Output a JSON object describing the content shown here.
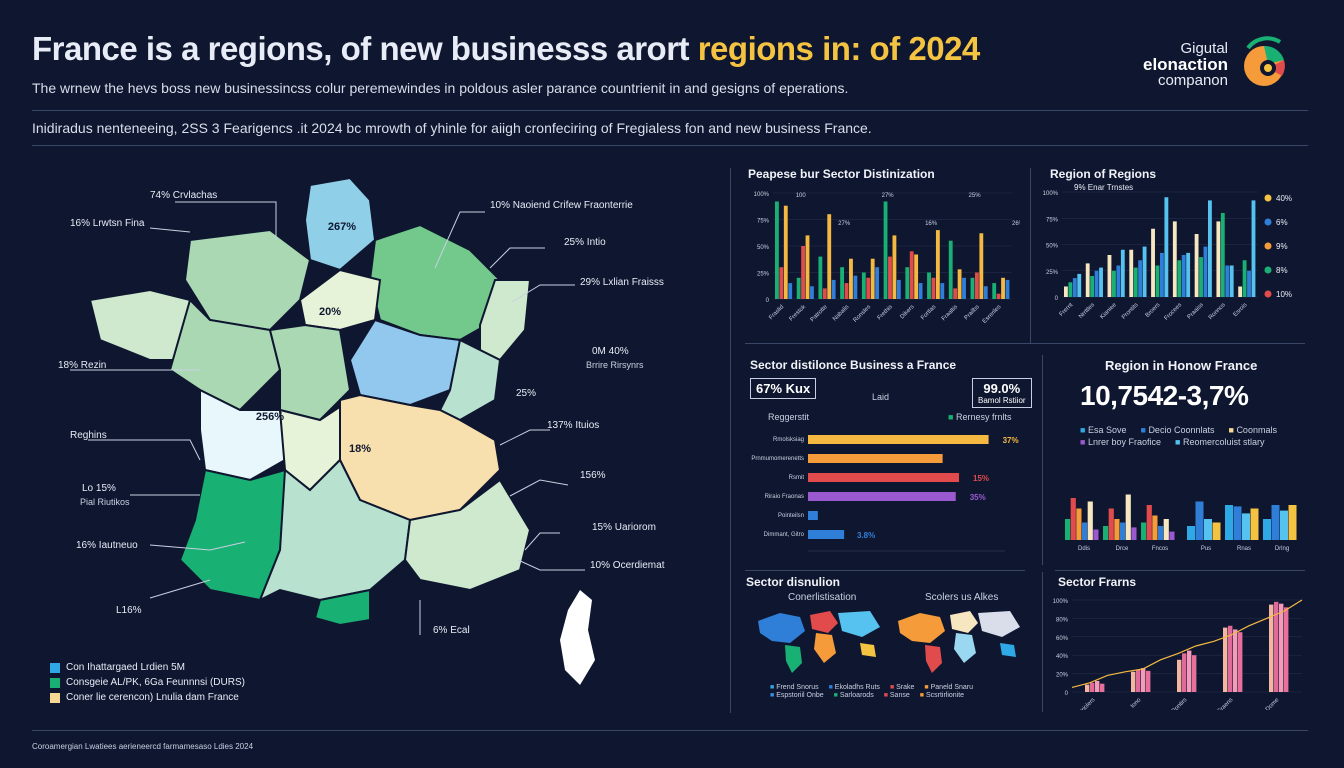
{
  "header": {
    "title_main": "France is a regions, of new businesss arort",
    "title_highlight": "regions in: of 2024",
    "subtitle": "The wrnew the hevs boss new businessincss colur peremewindes in poldous asler parance countrienit in and gesigns of eperations.",
    "description": "Inidiradus nenteneeing, 2SS 3 Fearigencs .it 2024 bc mrowth of yhinle for aiigh cronfeciring of Fregialess fon and new business France."
  },
  "logo": {
    "line1": "Gigutal",
    "line2": "elonaction",
    "line3": "companon"
  },
  "map": {
    "labels": [
      {
        "id": "l1",
        "text": "74% Crvlachas"
      },
      {
        "id": "l2",
        "text": "16% Lrwtsn Fina"
      },
      {
        "id": "l3",
        "text": "10% Naoiend Crifew Fraonterrie"
      },
      {
        "id": "l4",
        "text": "25% Intio"
      },
      {
        "id": "l5",
        "text": "29% Lxlian Fraisss"
      },
      {
        "id": "l6",
        "text": "0M 40%"
      },
      {
        "id": "l6b",
        "text": "Brrire Rirsynrs"
      },
      {
        "id": "l7",
        "text": "18% Rezin"
      },
      {
        "id": "l8",
        "text": "25%"
      },
      {
        "id": "l9",
        "text": "Reghins"
      },
      {
        "id": "l10",
        "text": "137% Ituios"
      },
      {
        "id": "l11",
        "text": "Lo 15%"
      },
      {
        "id": "l11b",
        "text": "Pial Riutikos"
      },
      {
        "id": "l12",
        "text": "156%"
      },
      {
        "id": "l13",
        "text": "15% Uariorom"
      },
      {
        "id": "l14",
        "text": "16% Iautneuo"
      },
      {
        "id": "l15",
        "text": "10% Ocerdiemat"
      },
      {
        "id": "l16",
        "text": "L16%"
      },
      {
        "id": "l17",
        "text": "6% Ecal"
      }
    ],
    "region_values": {
      "r1": "267%",
      "r2": "20%",
      "r3": "256%",
      "r4": "18%"
    },
    "legend": [
      {
        "color": "#2fa8e6",
        "label": "Con Ihattargaed Lrdien 5M"
      },
      {
        "color": "#19b074",
        "label": "Consgeie AL/PK, 6Ga Feunnnsi (DURS)"
      },
      {
        "color": "#f6d794",
        "label": "Coner lie cerencon) Lnulia dam France"
      }
    ]
  },
  "panels": {
    "p1_title": "Peapese bur Sector Distinization",
    "p2_title": "Region of Regions",
    "p3_title": "Sector distilonce Business a France",
    "p4_title": "Region in Honow France",
    "p5_title": "Sector disnulion",
    "p6_title": "Sector Frarns"
  },
  "p3": {
    "stat_left": "67% Kux",
    "stat_mid": "Laid",
    "stat_right": "99.0%",
    "stat_right_sub": "Bamol Rstiior",
    "left_sub": "Reggerstit",
    "legend_a": "Deplroxtomes",
    "legend_b": "Rernesy frnlts"
  },
  "p4": {
    "big_value": "10,7542-3,7%",
    "legend": [
      {
        "color": "#2fa8e6",
        "label": "Esa Sove"
      },
      {
        "color": "#2f7fd8",
        "label": "Decio Coonnlats"
      },
      {
        "color": "#f6d794",
        "label": "Coonmals"
      },
      {
        "color": "#9b59d0",
        "label": "Lnrer boy Fraofice"
      },
      {
        "color": "#55c2ef",
        "label": "Reomercoluist stlary"
      }
    ]
  },
  "p5": {
    "map_left_title": "Conerlistisation",
    "map_right_title": "Scolers us Alkes",
    "legend": [
      {
        "color": "#2fa8e6",
        "label": "Frend Snorus"
      },
      {
        "color": "#2f7fd8",
        "label": "Ekoladhs Ruts"
      },
      {
        "color": "#e24b4b",
        "label": "Srake"
      },
      {
        "color": "#f59b3a",
        "label": "Paneld Snaru"
      },
      {
        "color": "#3a8fe0",
        "label": "Espstoriil Onbe"
      },
      {
        "color": "#19b074",
        "label": "Sarloarods"
      },
      {
        "color": "#e24b4b",
        "label": "Sanse"
      },
      {
        "color": "#f59b3a",
        "label": "Scsrtirlionite"
      }
    ]
  },
  "footer": "Coroamergian  Lwatiees aerieneercd farmamesaso Ldies 2024",
  "chart_data": [
    {
      "id": "p1",
      "type": "bar",
      "title": "Peapese bur Sector Distinization",
      "ylim": [
        0,
        100
      ],
      "yticks": [
        "0",
        "25%",
        "50%",
        "75%",
        "100%"
      ],
      "categories": [
        "Fraslid",
        "Frestok",
        "Patrotte",
        "Nabalis",
        "Ronsles",
        "Frethis",
        "Dikers",
        "Fortlas",
        "Fraaltis",
        "Prailbs",
        "Esreriles"
      ],
      "series": [
        {
          "name": "A",
          "color": "#19b074",
          "values": [
            92,
            20,
            40,
            30,
            25,
            92,
            30,
            25,
            55,
            20,
            15
          ]
        },
        {
          "name": "B",
          "color": "#e24b4b",
          "values": [
            30,
            50,
            10,
            15,
            20,
            40,
            45,
            20,
            10,
            25,
            5
          ]
        },
        {
          "name": "C",
          "color": "#f5b942",
          "values": [
            88,
            60,
            80,
            38,
            38,
            60,
            42,
            65,
            28,
            62,
            20
          ]
        },
        {
          "name": "D",
          "color": "#2f7fd8",
          "values": [
            15,
            12,
            18,
            22,
            30,
            18,
            15,
            15,
            20,
            12,
            18
          ]
        }
      ],
      "data_labels": [
        "100",
        "27%",
        "27%",
        "16%",
        "25%",
        "26%"
      ]
    },
    {
      "id": "p2",
      "type": "bar",
      "title": "Region of Regions",
      "ylim": [
        0,
        100
      ],
      "yticks": [
        "0",
        "25%",
        "50%",
        "75%",
        "100%"
      ],
      "categories": [
        "Frernt",
        "Nrrttles",
        "Kianiee",
        "Prontits",
        "Broers",
        "Frocees",
        "Praaiss",
        "Ronnos",
        "Esrois"
      ],
      "series": [
        {
          "name": "A",
          "color": "#f6e7c1",
          "values": [
            10,
            32,
            40,
            45,
            65,
            72,
            60,
            72,
            10
          ]
        },
        {
          "name": "B",
          "color": "#19b074",
          "values": [
            14,
            20,
            25,
            28,
            30,
            35,
            38,
            80,
            35
          ]
        },
        {
          "name": "C",
          "color": "#2f7fd8",
          "values": [
            18,
            25,
            30,
            35,
            42,
            40,
            48,
            30,
            25
          ]
        },
        {
          "name": "D",
          "color": "#55c2ef",
          "values": [
            22,
            28,
            45,
            48,
            95,
            42,
            92,
            30,
            92
          ]
        }
      ],
      "top_label": "9% Enar Trnstes",
      "legend": [
        {
          "color": "#f5c342",
          "label": "40%"
        },
        {
          "color": "#2f7fd8",
          "label": "6%"
        },
        {
          "color": "#f59b3a",
          "label": "9%"
        },
        {
          "color": "#19b074",
          "label": "8%"
        },
        {
          "color": "#e24b4b",
          "label": "10%"
        }
      ]
    },
    {
      "id": "p3",
      "type": "bar",
      "orientation": "horizontal",
      "title": "Sector distilonce Business a France",
      "xlim": [
        0,
        60
      ],
      "xticks": [
        "0",
        "10%",
        "20%",
        "30%",
        "40%",
        "50%",
        "60%"
      ],
      "categories": [
        "Rmolsksiag",
        "Prnmumomerenetts",
        "Rsmit",
        "Riraio Fraonas",
        "Pointeilsn",
        "Dimmant, Gitro"
      ],
      "values": [
        55,
        41,
        46,
        45,
        3,
        11
      ],
      "colors": [
        "#f5b942",
        "#f59b3a",
        "#e24b4b",
        "#9b59d0",
        "#2f7fd8",
        "#2f7fd8"
      ],
      "value_labels": [
        "37%",
        "",
        "15%",
        "35%",
        "",
        "3.8%"
      ]
    },
    {
      "id": "p4",
      "type": "bar",
      "title": "Region in Honow France",
      "groups": [
        {
          "categories": [
            "Ddis",
            "Drce",
            "Fncos"
          ],
          "series": [
            {
              "color": "#19b074",
              "values": [
                30,
                20,
                25
              ]
            },
            {
              "color": "#e24b4b",
              "values": [
                60,
                45,
                50
              ]
            },
            {
              "color": "#f59b3a",
              "values": [
                45,
                30,
                35
              ]
            },
            {
              "color": "#2f7fd8",
              "values": [
                25,
                25,
                20
              ]
            },
            {
              "color": "#f6e7c1",
              "values": [
                55,
                65,
                30
              ]
            },
            {
              "color": "#9b59d0",
              "values": [
                15,
                18,
                12
              ]
            }
          ]
        },
        {
          "categories": [
            "Pus",
            "Rnas",
            "Drlng"
          ],
          "series": [
            {
              "color": "#2fa8e6",
              "values": [
                20,
                50,
                30
              ]
            },
            {
              "color": "#2f7fd8",
              "values": [
                55,
                48,
                50
              ]
            },
            {
              "color": "#55c2ef",
              "values": [
                30,
                38,
                42
              ]
            },
            {
              "color": "#f5c342",
              "values": [
                25,
                45,
                50
              ]
            }
          ]
        }
      ]
    },
    {
      "id": "p6",
      "type": "bar",
      "title": "Sector Frarns",
      "ylim": [
        0,
        100
      ],
      "yticks": [
        "0",
        "20%",
        "40%",
        "60%",
        "80%",
        "100%"
      ],
      "categories": [
        "Frotriolers",
        "Iono",
        "Pontirs",
        "Fraens",
        "Dome"
      ],
      "series": [
        {
          "name": "A",
          "color": "#f6b5a0",
          "values": [
            8,
            22,
            35,
            70,
            95
          ]
        },
        {
          "name": "B",
          "color": "#e06a9a",
          "values": [
            10,
            24,
            42,
            72,
            98
          ]
        },
        {
          "name": "C",
          "color": "#f59bb8",
          "values": [
            12,
            26,
            45,
            68,
            96
          ]
        },
        {
          "name": "D",
          "color": "#e8709a",
          "values": [
            9,
            23,
            40,
            65,
            92
          ]
        }
      ],
      "trend": [
        5,
        10,
        18,
        22,
        25,
        35,
        42,
        50,
        55,
        62,
        72,
        80,
        88,
        100
      ]
    }
  ]
}
